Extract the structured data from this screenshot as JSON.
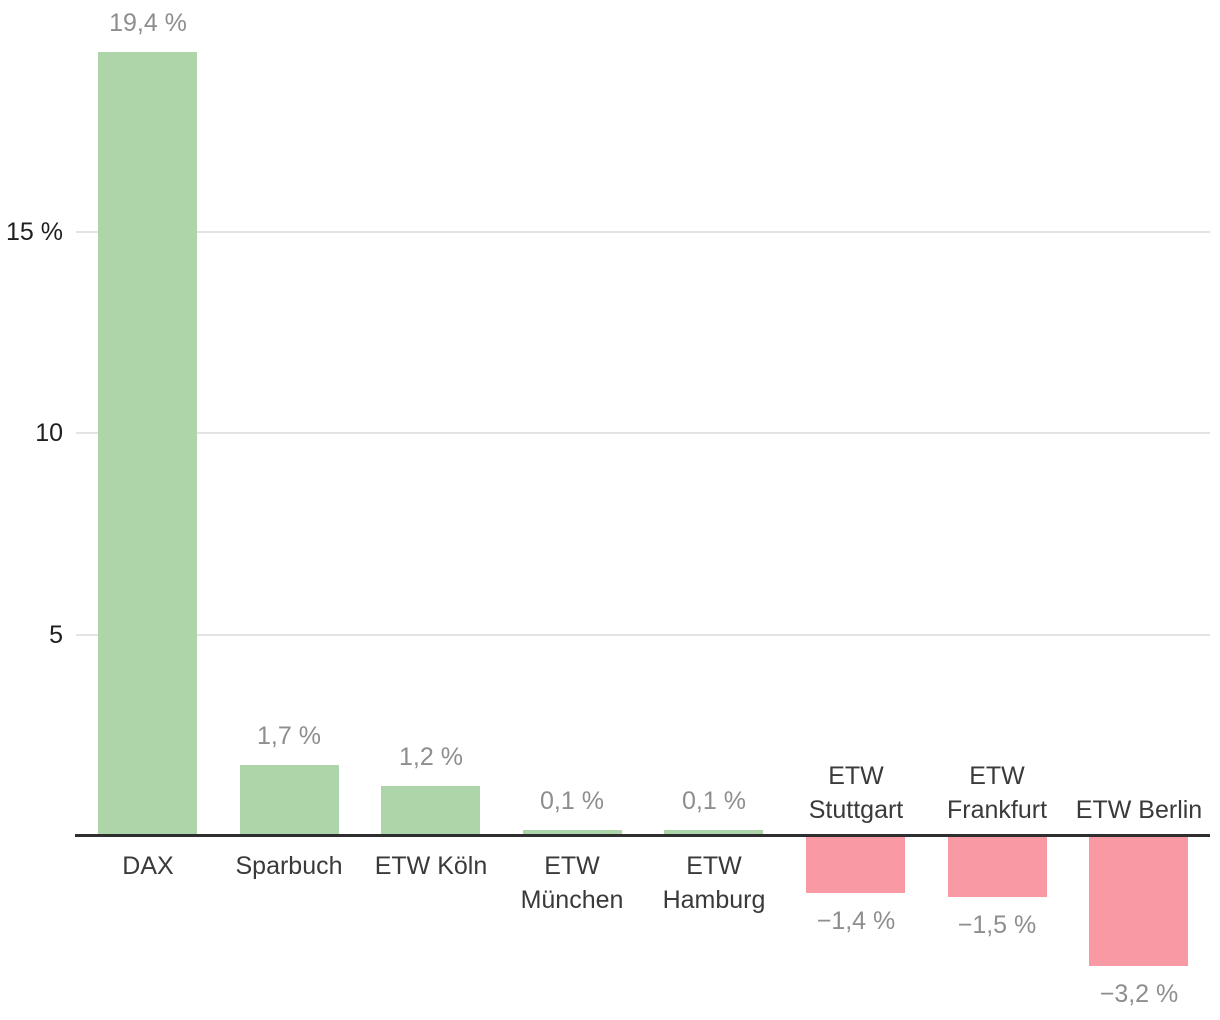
{
  "chart_data": {
    "type": "bar",
    "title": "",
    "xlabel": "",
    "ylabel": "",
    "unit": "%",
    "categories": [
      "DAX",
      "Sparbuch",
      "ETW Köln",
      "ETW München",
      "ETW Hamburg",
      "ETW Stuttgart",
      "ETW Frankfurt",
      "ETW Berlin"
    ],
    "category_lines": [
      [
        "DAX"
      ],
      [
        "Sparbuch"
      ],
      [
        "ETW Köln"
      ],
      [
        "ETW",
        "München"
      ],
      [
        "ETW",
        "Hamburg"
      ],
      [
        "ETW",
        "Stuttgart"
      ],
      [
        "ETW",
        "Frankfurt"
      ],
      [
        "ETW Berlin"
      ]
    ],
    "slugs": [
      "dax",
      "sparbuch",
      "etw-koeln",
      "etw-muenchen",
      "etw-hamburg",
      "etw-stuttgart",
      "etw-frankfurt",
      "etw-berlin"
    ],
    "values": [
      19.4,
      1.7,
      1.2,
      0.1,
      0.1,
      -1.4,
      -1.5,
      -3.2
    ],
    "value_labels": [
      "19,4 %",
      "1,7 %",
      "1,2 %",
      "0,1 %",
      "0,1 %",
      "−1,4 %",
      "−1,5 %",
      "−3,2 %"
    ],
    "yticks": [
      {
        "value": 5,
        "label": "5"
      },
      {
        "value": 10,
        "label": "10"
      },
      {
        "value": 15,
        "label": "15 %"
      }
    ],
    "ylim": [
      -4.5,
      20.5
    ],
    "grid": true,
    "legend": false,
    "colors": {
      "positive_bar": "#aed5aa",
      "negative_bar": "#f899a4",
      "value_label": "#8e8e8e",
      "tick_label": "#1f1f1f",
      "category_label": "#3a3a3a",
      "gridline": "#e3e3e3",
      "axis_line": "#2e2e2e",
      "background": "#ffffff"
    }
  }
}
